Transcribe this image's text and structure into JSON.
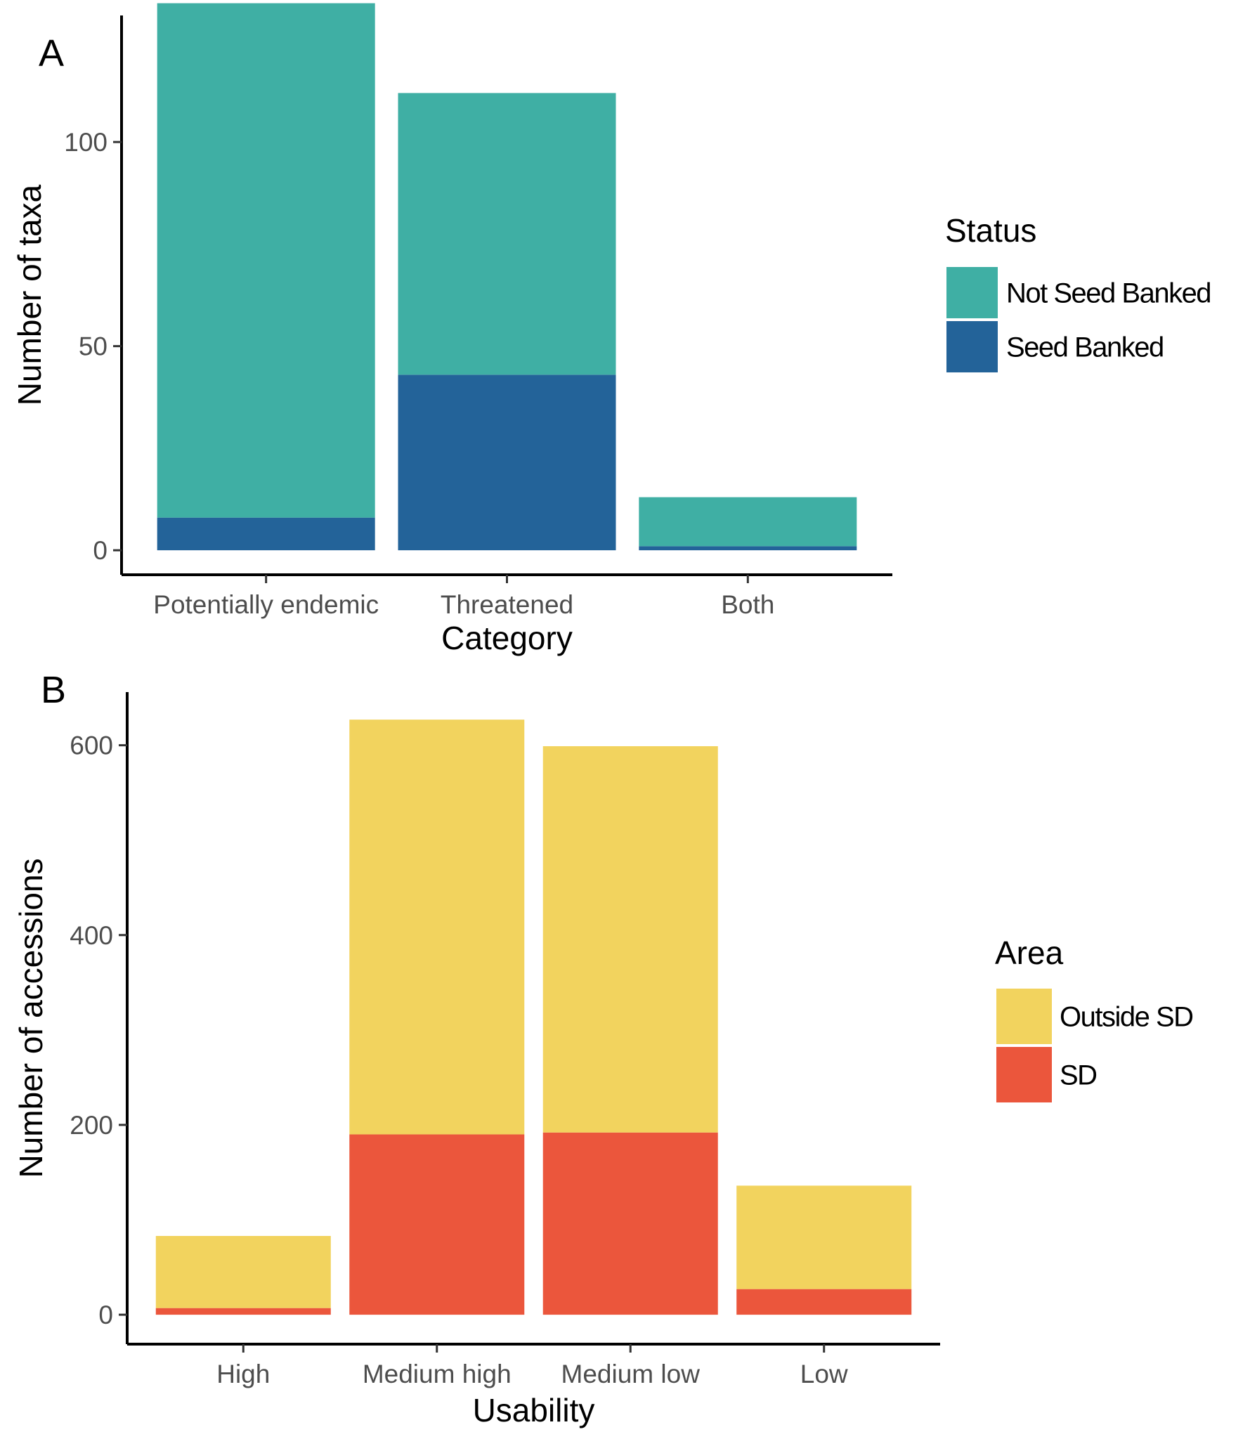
{
  "chart_data": [
    {
      "panel": "A",
      "type": "bar",
      "stacked": true,
      "categories": [
        "Potentially endemic",
        "Threatened",
        "Both"
      ],
      "series": [
        {
          "name": "Seed Banked",
          "color": "#236399",
          "values": [
            8,
            43,
            1
          ]
        },
        {
          "name": "Not Seed Banked",
          "color": "#3fafa4",
          "values": [
            126,
            69,
            12
          ]
        }
      ],
      "xlabel": "Category",
      "ylabel": "Number of taxa",
      "yticks": [
        0,
        50,
        100
      ],
      "ylim": [
        -6,
        131
      ],
      "legend": {
        "title": "Status",
        "position": "right",
        "entries": [
          "Not Seed Banked",
          "Seed Banked"
        ]
      },
      "grid": false
    },
    {
      "panel": "B",
      "type": "bar",
      "stacked": true,
      "categories": [
        "High",
        "Medium high",
        "Medium low",
        "Low"
      ],
      "series": [
        {
          "name": "SD",
          "color": "#eb563c",
          "values": [
            7,
            190,
            192,
            27
          ]
        },
        {
          "name": "Outside SD",
          "color": "#f2d35e",
          "values": [
            76,
            437,
            407,
            109
          ]
        }
      ],
      "xlabel": "Usability",
      "ylabel": "Number of accessions",
      "yticks": [
        0,
        200,
        400,
        600
      ],
      "ylim": [
        -31,
        656
      ],
      "legend": {
        "title": "Area",
        "position": "right",
        "entries": [
          "Outside SD",
          "SD"
        ]
      },
      "grid": false
    }
  ]
}
